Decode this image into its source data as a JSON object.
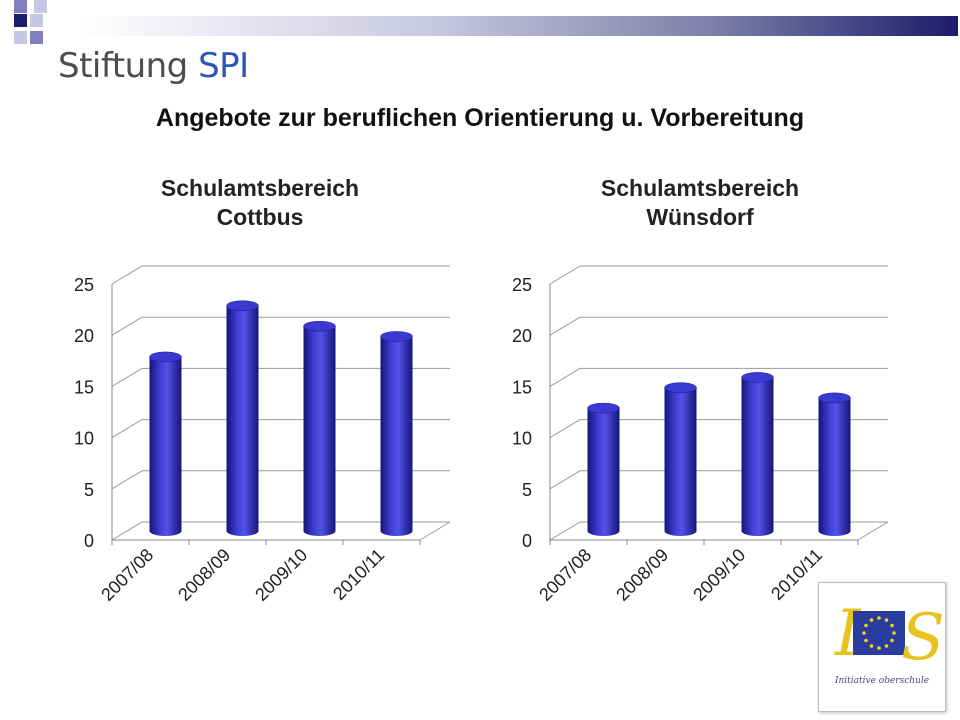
{
  "header": {
    "org_name_part1": "Stiftung",
    "org_name_part2": "SPI",
    "title": "Angebote zur beruflichen Orientierung u. Vorbereitung"
  },
  "colors": {
    "bar": "#2e2ec0",
    "bar_dark": "#15157a",
    "bar_light": "#5a5ae8",
    "org_accent": "#2b55b7"
  },
  "chart_data": [
    {
      "type": "bar",
      "title_lines": [
        "Schulamtsbereich",
        "Cottbus"
      ],
      "categories": [
        "2007/08",
        "2008/09",
        "2009/10",
        "2010/11"
      ],
      "values": [
        17,
        22,
        20,
        19
      ],
      "ylim": [
        0,
        25
      ],
      "yticks": [
        0,
        5,
        10,
        15,
        20,
        25
      ],
      "grid": true,
      "style": "3d-cylinder"
    },
    {
      "type": "bar",
      "title_lines": [
        "Schulamtsbereich",
        "Wünsdorf"
      ],
      "categories": [
        "2007/08",
        "2008/09",
        "2009/10",
        "2010/11"
      ],
      "values": [
        12,
        14,
        15,
        13
      ],
      "ylim": [
        0,
        25
      ],
      "yticks": [
        0,
        5,
        10,
        15,
        20,
        25
      ],
      "grid": true,
      "style": "3d-cylinder"
    }
  ],
  "logo": {
    "letters": "IOS",
    "caption": "Initiative oberschule",
    "icon": "eu-flag-stars-icon"
  }
}
